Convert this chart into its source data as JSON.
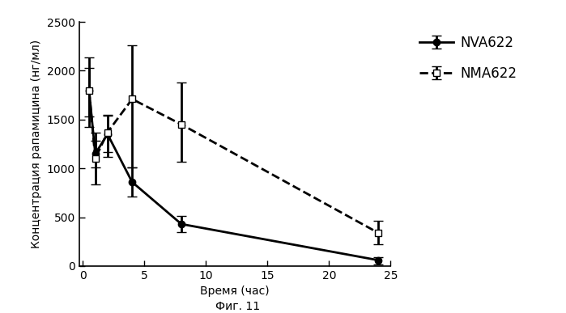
{
  "title": "",
  "xlabel": "Время (час)",
  "ylabel": "Концентрация рапамицина (нг/мл)",
  "caption": "Фиг. 11",
  "xlim": [
    -0.3,
    25
  ],
  "ylim": [
    0,
    2500
  ],
  "yticks": [
    0,
    500,
    1000,
    1500,
    2000,
    2500
  ],
  "xticks": [
    0,
    5,
    10,
    15,
    20,
    25
  ],
  "xtick_labels": [
    "0",
    "5",
    "10",
    "15",
    "20",
    "25"
  ],
  "NVA622": {
    "label": "NVA622",
    "x": [
      0.5,
      1,
      2,
      4,
      8,
      24
    ],
    "y": [
      1800,
      1150,
      1350,
      860,
      430,
      60
    ],
    "yerr_low": [
      270,
      140,
      230,
      150,
      80,
      40
    ],
    "yerr_high": [
      230,
      130,
      200,
      150,
      80,
      30
    ],
    "color": "#000000",
    "linestyle": "-",
    "marker": "o",
    "markersize": 6,
    "linewidth": 2
  },
  "NMA622": {
    "label": "NMA622",
    "x": [
      0.5,
      1,
      2,
      4,
      8,
      24
    ],
    "y": [
      1800,
      1100,
      1370,
      1710,
      1450,
      340
    ],
    "yerr_low": [
      380,
      260,
      200,
      700,
      380,
      120
    ],
    "yerr_high": [
      340,
      270,
      170,
      550,
      430,
      120
    ],
    "color": "#000000",
    "linestyle": "--",
    "marker": "s",
    "markersize": 6,
    "linewidth": 2
  },
  "background_color": "#ffffff",
  "legend_fontsize": 12,
  "label_fontsize": 10,
  "tick_fontsize": 10
}
